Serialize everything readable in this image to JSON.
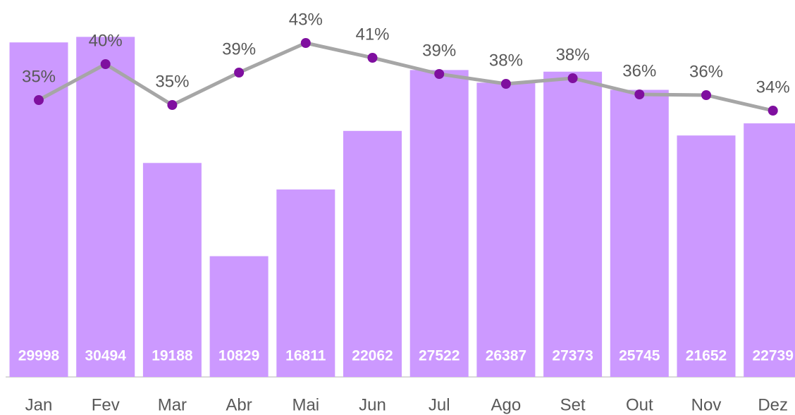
{
  "chart_data": {
    "type": "bar_line",
    "categories": [
      "Jan",
      "Fev",
      "Mar",
      "Abr",
      "Mai",
      "Jun",
      "Jul",
      "Ago",
      "Set",
      "Out",
      "Nov",
      "Dez"
    ],
    "series": [
      {
        "type": "bar",
        "color": "#cc99ff",
        "values": [
          29998,
          30494,
          19188,
          10829,
          16811,
          22062,
          27522,
          26387,
          27373,
          25745,
          21652,
          22739
        ]
      },
      {
        "type": "line",
        "axis": "y2",
        "color": "#a6a6a6",
        "marker_color": "#7f0f9f",
        "values": [
          35.3,
          40.4,
          34.6,
          39.2,
          43.4,
          41.3,
          39.0,
          37.6,
          38.4,
          36.1,
          36.0,
          33.8
        ],
        "value_labels": [
          "35%",
          "40%",
          "35%",
          "39%",
          "43%",
          "41%",
          "39%",
          "38%",
          "38%",
          "36%",
          "36%",
          "34%"
        ]
      }
    ],
    "ylim": [
      0,
      33800
    ],
    "y2lim": [
      -4,
      49.5
    ]
  }
}
